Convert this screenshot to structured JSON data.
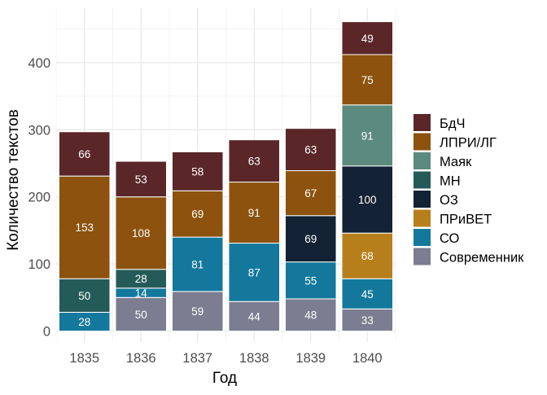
{
  "chart_data": {
    "type": "bar",
    "stacked": true,
    "title": "",
    "xlabel": "Год",
    "ylabel": "Количество текстов",
    "ylim": [
      0,
      460
    ],
    "yticks": [
      0,
      100,
      200,
      300,
      400
    ],
    "grid": true,
    "legend_position": "right",
    "categories": [
      "1835",
      "1836",
      "1837",
      "1838",
      "1839",
      "1840"
    ],
    "series": [
      {
        "name": "Современник",
        "color": "#7C7D91",
        "values": [
          0,
          50,
          59,
          44,
          48,
          33
        ]
      },
      {
        "name": "СО",
        "color": "#13789C",
        "values": [
          28,
          14,
          81,
          87,
          55,
          45
        ]
      },
      {
        "name": "ПРиВЕТ",
        "color": "#B77F1B",
        "values": [
          0,
          0,
          0,
          0,
          0,
          68
        ]
      },
      {
        "name": "ОЗ",
        "color": "#132235",
        "values": [
          0,
          0,
          0,
          0,
          69,
          100
        ]
      },
      {
        "name": "МН",
        "color": "#245B58",
        "values": [
          50,
          28,
          0,
          0,
          0,
          0
        ]
      },
      {
        "name": "Маяк",
        "color": "#5B8A7E",
        "values": [
          0,
          0,
          0,
          0,
          0,
          91
        ]
      },
      {
        "name": "ЛПРИ/ЛГ",
        "color": "#8C520E",
        "values": [
          153,
          108,
          69,
          91,
          67,
          75
        ]
      },
      {
        "name": "БдЧ",
        "color": "#5A2628",
        "values": [
          66,
          53,
          58,
          63,
          63,
          49
        ]
      }
    ],
    "legend_order": [
      "БдЧ",
      "ЛПРИ/ЛГ",
      "Маяк",
      "МН",
      "ОЗ",
      "ПРиВЕТ",
      "СО",
      "Современник"
    ]
  }
}
